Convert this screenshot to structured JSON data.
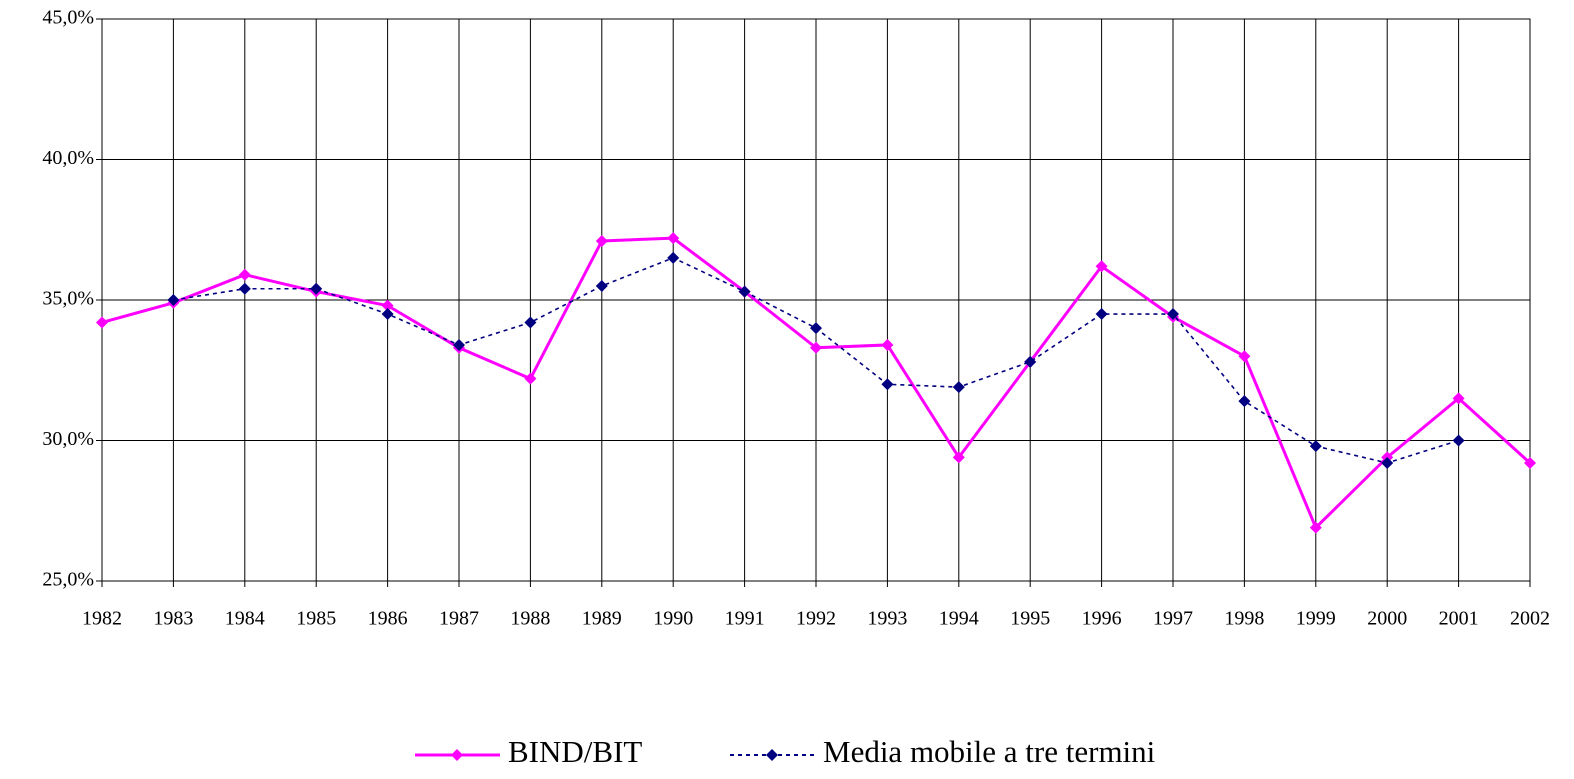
{
  "chart_data": {
    "type": "line",
    "x": [
      1982,
      1983,
      1984,
      1985,
      1986,
      1987,
      1988,
      1989,
      1990,
      1991,
      1992,
      1993,
      1994,
      1995,
      1996,
      1997,
      1998,
      1999,
      2000,
      2001,
      2002
    ],
    "xlim": [
      1982,
      2002
    ],
    "xticks": [
      1982,
      1983,
      1984,
      1985,
      1986,
      1987,
      1988,
      1989,
      1990,
      1991,
      1992,
      1993,
      1994,
      1995,
      1996,
      1997,
      1998,
      1999,
      2000,
      2001,
      2002
    ],
    "ylim": [
      25,
      45
    ],
    "yticks": [
      {
        "value": 25,
        "label": "25,0%"
      },
      {
        "value": 30,
        "label": "30,0%"
      },
      {
        "value": 35,
        "label": "35,0%"
      },
      {
        "value": 40,
        "label": "40,0%"
      },
      {
        "value": 45,
        "label": "45,0%"
      }
    ],
    "grid": true,
    "legend": "bottom",
    "series": [
      {
        "name": "BIND/BIT",
        "color": "#ff00ff",
        "dash": "solid",
        "values": [
          34.2,
          34.9,
          35.9,
          35.3,
          34.8,
          33.3,
          32.2,
          37.1,
          37.2,
          35.3,
          33.3,
          33.4,
          29.4,
          32.8,
          36.2,
          34.4,
          33.0,
          26.9,
          29.4,
          31.5,
          29.2
        ]
      },
      {
        "name": "Media mobile a tre termini",
        "color": "#000080",
        "dash": "dotted",
        "values": [
          null,
          35.0,
          35.4,
          35.4,
          34.5,
          33.4,
          34.2,
          35.5,
          36.5,
          35.3,
          34.0,
          32.0,
          31.9,
          32.8,
          34.5,
          34.5,
          31.4,
          29.8,
          29.2,
          30.0,
          null
        ]
      }
    ]
  }
}
